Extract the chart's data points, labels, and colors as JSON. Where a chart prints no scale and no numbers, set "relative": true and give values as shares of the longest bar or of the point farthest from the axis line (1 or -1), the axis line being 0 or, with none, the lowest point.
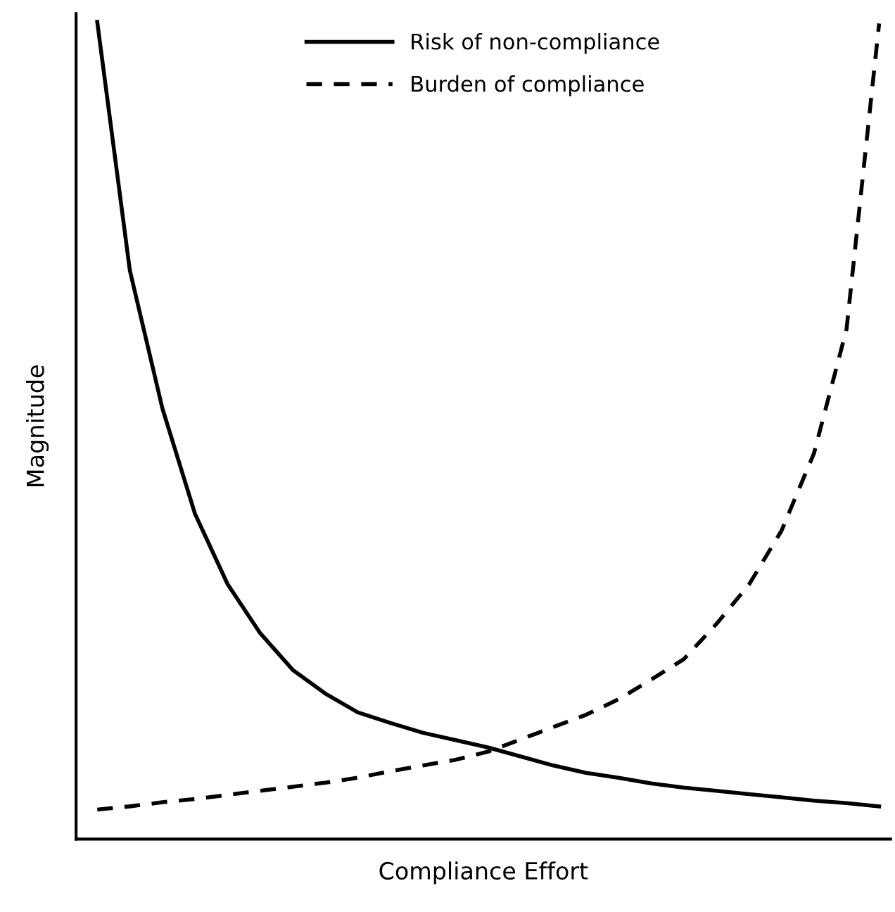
{
  "chart_data": {
    "type": "line",
    "relative": true,
    "xlabel": "Compliance Effort",
    "ylabel": "Magnitude",
    "legend": "top",
    "marker": "none",
    "categories": [
      null,
      null,
      null,
      null,
      null,
      null,
      null,
      null,
      null,
      null,
      null,
      null,
      null,
      null,
      null,
      null,
      null,
      null,
      null,
      null,
      null,
      null,
      null,
      null,
      null
    ],
    "series": [
      {
        "name": "Risk of non-compliance",
        "color": "#000000",
        "line_style": "solid",
        "values": [
          1.0,
          0.696,
          0.527,
          0.398,
          0.312,
          0.252,
          0.207,
          0.178,
          0.155,
          0.142,
          0.13,
          0.121,
          0.112,
          0.101,
          0.09,
          0.081,
          0.075,
          0.068,
          0.063,
          0.059,
          0.055,
          0.051,
          0.047,
          0.044,
          0.04
        ]
      },
      {
        "name": "Burden of compliance",
        "color": "#000000",
        "line_style": "dashed",
        "values": [
          0.036,
          0.04,
          0.045,
          0.049,
          0.054,
          0.059,
          0.064,
          0.069,
          0.075,
          0.083,
          0.09,
          0.097,
          0.107,
          0.122,
          0.137,
          0.152,
          0.171,
          0.195,
          0.22,
          0.263,
          0.311,
          0.377,
          0.472,
          0.624,
          0.998
        ]
      }
    ]
  }
}
